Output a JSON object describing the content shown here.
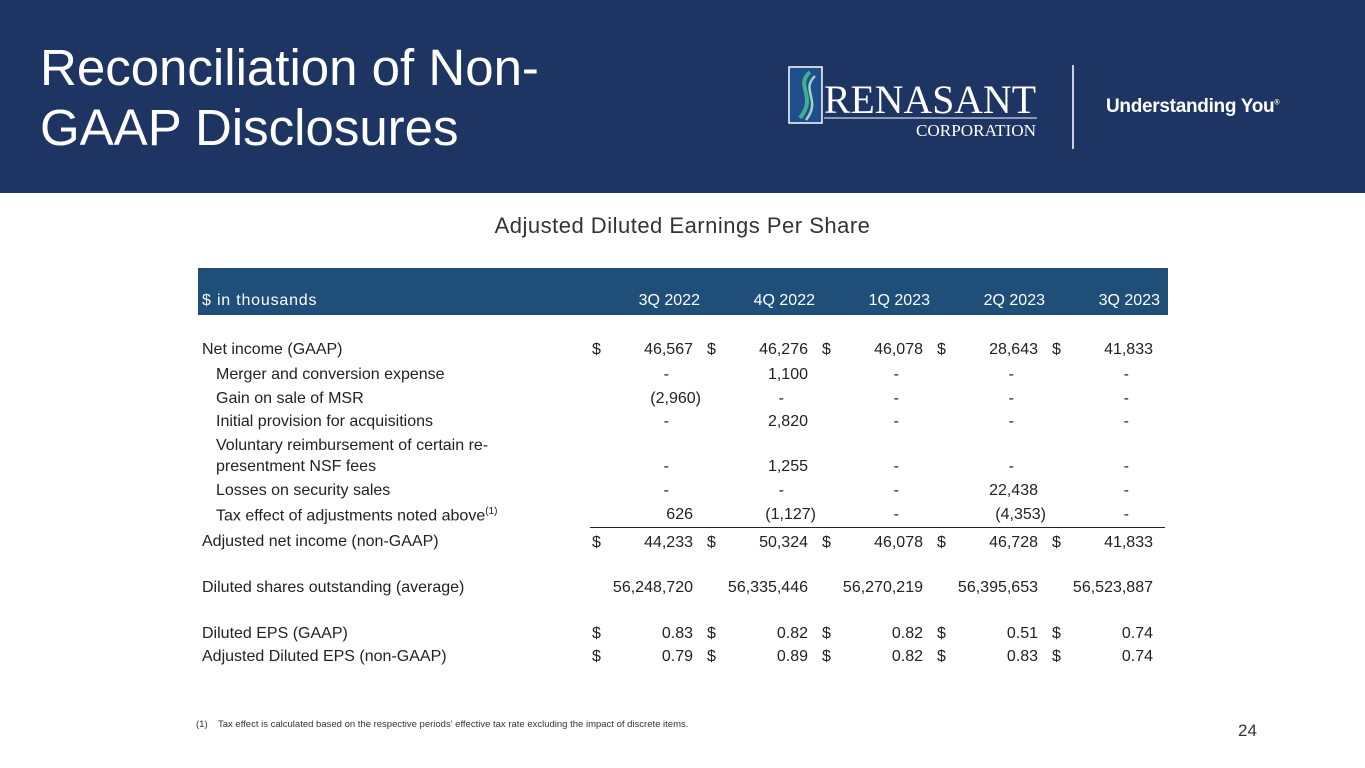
{
  "header": {
    "title": "Reconciliation of Non-GAAP Disclosures",
    "logo_text": "RENASANT",
    "logo_subtext": "CORPORATION",
    "tagline": "Understanding You",
    "tagline_mark": "®"
  },
  "subtitle": "Adjusted Diluted Earnings Per Share",
  "table": {
    "unit_label": "$ in thousands",
    "columns": [
      "3Q 2022",
      "4Q 2022",
      "1Q 2023",
      "2Q 2023",
      "3Q 2023"
    ],
    "rows": [
      {
        "label": "Net income (GAAP)",
        "indent": false,
        "dollar": true,
        "values": [
          "46,567",
          "46,276",
          "46,078",
          "28,643",
          "41,833"
        ]
      },
      {
        "label": "Merger and conversion expense",
        "indent": true,
        "values": [
          "-",
          "1,100",
          "-",
          "-",
          "-"
        ]
      },
      {
        "label": "Gain on sale of MSR",
        "indent": true,
        "values": [
          "(2,960)",
          "-",
          "-",
          "-",
          "-"
        ]
      },
      {
        "label": "Initial provision for acquisitions",
        "indent": true,
        "values": [
          "-",
          "2,820",
          "-",
          "-",
          "-"
        ]
      },
      {
        "label": "Voluntary reimbursement of certain re-",
        "indent": true,
        "values": []
      },
      {
        "label": "presentment NSF fees",
        "indent": true,
        "values": [
          "-",
          "1,255",
          "-",
          "-",
          "-"
        ]
      },
      {
        "label": "Losses on security sales",
        "indent": true,
        "values": [
          "-",
          "-",
          "-",
          "22,438",
          "-"
        ]
      },
      {
        "label": "Tax effect of adjustments noted above",
        "sup": "(1)",
        "indent": true,
        "values": [
          "626",
          "(1,127)",
          "-",
          "(4,353)",
          "-"
        ]
      },
      {
        "label": "Adjusted net income (non-GAAP)",
        "indent": false,
        "dollar": true,
        "topline": true,
        "values": [
          "44,233",
          "50,324",
          "46,078",
          "46,728",
          "41,833"
        ]
      },
      {
        "label": "Diluted shares outstanding (average)",
        "indent": false,
        "values": [
          "56,248,720",
          "56,335,446",
          "56,270,219",
          "56,395,653",
          "56,523,887"
        ]
      },
      {
        "label": "Diluted EPS (GAAP)",
        "indent": false,
        "dollar": true,
        "values": [
          "0.83",
          "0.82",
          "0.82",
          "0.51",
          "0.74"
        ]
      },
      {
        "label": "Adjusted Diluted EPS (non-GAAP)",
        "indent": false,
        "dollar": true,
        "values": [
          "0.79",
          "0.89",
          "0.82",
          "0.83",
          "0.74"
        ]
      }
    ]
  },
  "footnote": "(1)    Tax effect is calculated based on the respective periods' effective tax rate excluding the impact of discrete items.",
  "page_number": "24"
}
